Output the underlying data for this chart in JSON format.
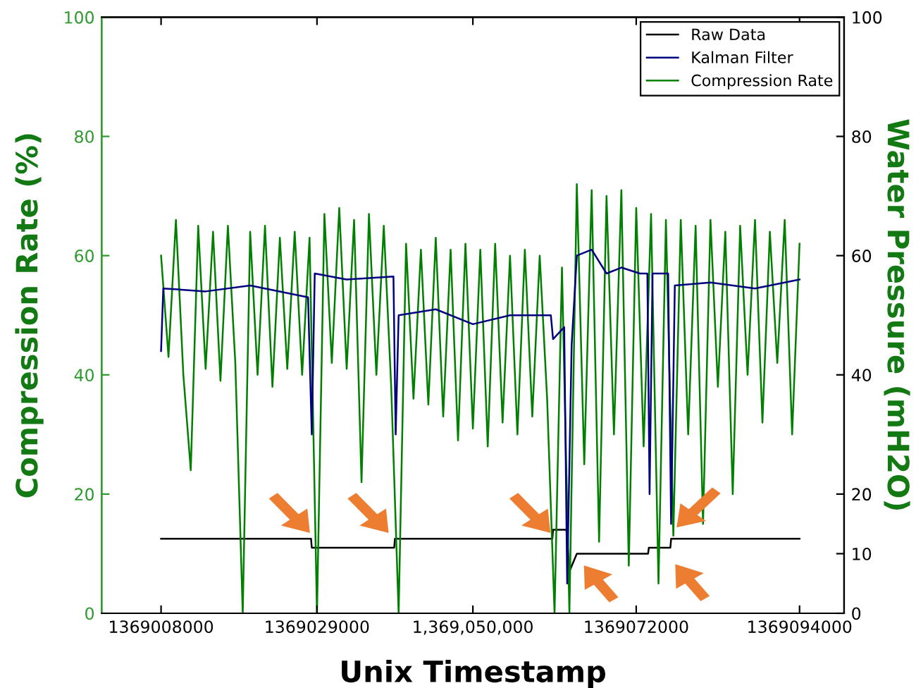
{
  "chart_data": {
    "type": "line",
    "xlabel": "Unix Timestamp",
    "ylabel": "Compression Rate (%)",
    "y2label": "Water Pressure (mH2O)",
    "xlim": [
      1369000000,
      1369100000
    ],
    "xticks": [
      1369008000,
      1369029000,
      {
        "value": 1369050000,
        "label": "1,369,050,000"
      },
      1369072000,
      1369094000
    ],
    "ylim": [
      0,
      100
    ],
    "yticks": [
      0,
      20,
      40,
      60,
      80,
      100
    ],
    "y2lim": [
      0,
      100
    ],
    "y2ticks": [
      0,
      10,
      20,
      40,
      60,
      80,
      100
    ],
    "grid": false,
    "legend": "top right",
    "marker": "none",
    "line_style": "solid",
    "series": [
      {
        "name": "Raw Data",
        "color": "#000000",
        "axis": "y2",
        "x": [
          1369008000,
          1369028200,
          1369028300,
          1369039400,
          1369039500,
          1369060700,
          1369060800,
          1369062600,
          1369063000,
          1369064000,
          1369073600,
          1369073700,
          1369076600,
          1369076700,
          1369094000
        ],
        "values": [
          12.5,
          12.5,
          11,
          11,
          12.5,
          12.5,
          14,
          14,
          7,
          10,
          10,
          11,
          11,
          12.5,
          12.5
        ]
      },
      {
        "name": "Kalman Filter",
        "color": "#00007f",
        "x": [
          1369008000,
          1369008300,
          1369014000,
          1369020000,
          1369027800,
          1369028300,
          1369028700,
          1369033000,
          1369039300,
          1369039600,
          1369040000,
          1369045000,
          1369050000,
          1369055000,
          1369060500,
          1369060800,
          1369062300,
          1369062700,
          1369063300,
          1369064000,
          1369066000,
          1369068000,
          1369070000,
          1369072500,
          1369073500,
          1369073800,
          1369074200,
          1369076300,
          1369076700,
          1369077200,
          1369082000,
          1369088000,
          1369094000
        ],
        "values": [
          44,
          54.5,
          54,
          55,
          53,
          30,
          57,
          56,
          56.5,
          30,
          50,
          51,
          48.5,
          50,
          50,
          46,
          48,
          5,
          45,
          60,
          61,
          57,
          58,
          57,
          57,
          20,
          57,
          57,
          15,
          55,
          55.5,
          54.5,
          56
        ]
      },
      {
        "name": "Compression Rate",
        "color": "#007f00",
        "x": [
          1369008000,
          1369009000,
          1369010000,
          1369011000,
          1369012000,
          1369013000,
          1369014000,
          1369015000,
          1369016000,
          1369017000,
          1369018000,
          1369019000,
          1369020000,
          1369021000,
          1369022000,
          1369023000,
          1369024000,
          1369025000,
          1369026000,
          1369027000,
          1369028000,
          1369029000,
          1369030000,
          1369031000,
          1369032000,
          1369033000,
          1369034000,
          1369035000,
          1369036000,
          1369037000,
          1369038000,
          1369039000,
          1369040000,
          1369041000,
          1369042000,
          1369043000,
          1369044000,
          1369045000,
          1369046000,
          1369047000,
          1369048000,
          1369049000,
          1369050000,
          1369051000,
          1369052000,
          1369053000,
          1369054000,
          1369055000,
          1369056000,
          1369057000,
          1369058000,
          1369059000,
          1369060000,
          1369061000,
          1369062000,
          1369063000,
          1369064000,
          1369065000,
          1369066000,
          1369067000,
          1369068000,
          1369069000,
          1369070000,
          1369071000,
          1369072000,
          1369073000,
          1369074000,
          1369075000,
          1369076000,
          1369077000,
          1369078000,
          1369079000,
          1369080000,
          1369081000,
          1369082000,
          1369083000,
          1369084000,
          1369085000,
          1369086000,
          1369087000,
          1369088000,
          1369089000,
          1369090000,
          1369091000,
          1369092000,
          1369093000,
          1369094000
        ],
        "values": [
          60,
          43,
          66,
          40,
          24,
          65,
          41,
          64,
          39,
          65,
          42,
          0,
          64,
          40,
          65,
          38,
          63,
          41,
          64,
          40,
          63,
          0,
          67,
          42,
          68,
          41,
          66,
          22,
          67,
          40,
          65,
          38,
          0,
          62,
          36,
          61,
          35,
          63,
          33,
          61,
          29,
          62,
          31,
          61,
          28,
          62,
          32,
          60,
          30,
          61,
          33,
          60,
          36,
          0,
          58,
          0,
          72,
          25,
          71,
          12,
          70,
          30,
          71,
          8,
          68,
          28,
          67,
          5,
          66,
          13,
          66,
          30,
          65,
          15,
          66,
          38,
          64,
          20,
          65,
          40,
          66,
          32,
          64,
          42,
          66,
          30,
          62
        ]
      }
    ]
  }
}
